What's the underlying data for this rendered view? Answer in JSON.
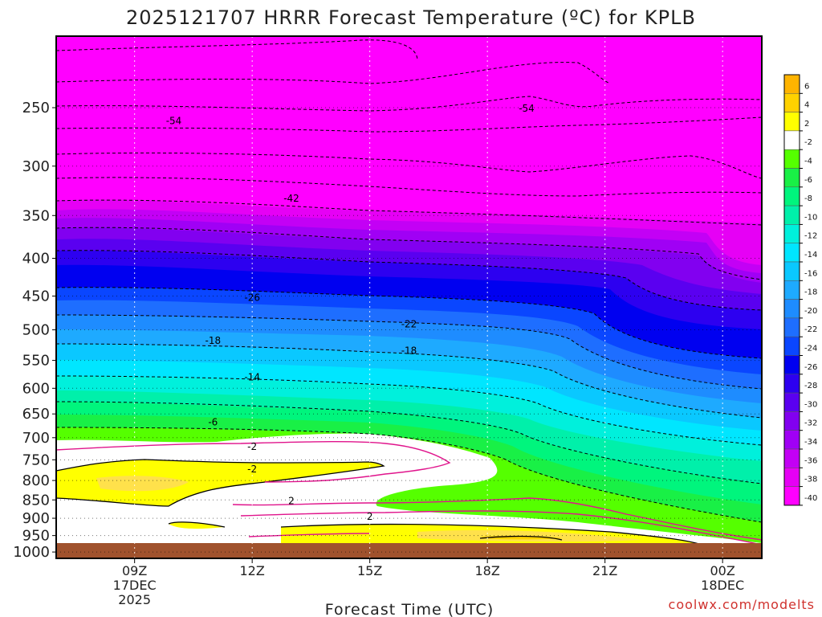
{
  "chart_data": {
    "type": "heatmap",
    "title": "2025121707 HRRR Forecast Temperature (ºC) for KPLB",
    "xlabel": "Forecast Time (UTC)",
    "ylabel": "",
    "credit": "coolwx.com/modelts",
    "x_ticks": [
      {
        "label": "09Z",
        "sub": [
          "17DEC",
          "2025"
        ],
        "hour": 9
      },
      {
        "label": "12Z",
        "sub": [],
        "hour": 12
      },
      {
        "label": "15Z",
        "sub": [],
        "hour": 15
      },
      {
        "label": "18Z",
        "sub": [],
        "hour": 18
      },
      {
        "label": "21Z",
        "sub": [],
        "hour": 21
      },
      {
        "label": "00Z",
        "sub": [
          "18DEC"
        ],
        "hour": 24
      }
    ],
    "x_range_hours": [
      7.0,
      25.0
    ],
    "y_axis": "pressure (log scale, inverted)",
    "y_range": [
      1020,
      200
    ],
    "y_ticks": [
      250,
      300,
      350,
      400,
      450,
      500,
      550,
      600,
      650,
      700,
      750,
      800,
      850,
      900,
      950,
      1000
    ],
    "grid": true,
    "colorbar": {
      "levels": [
        "6",
        "4",
        "2",
        "-2",
        "-4",
        "-6",
        "-8",
        "-10",
        "-12",
        "-14",
        "-16",
        "-18",
        "-20",
        "-22",
        "-24",
        "-26",
        "-28",
        "-30",
        "-32",
        "-34",
        "-36",
        "-38",
        "-40"
      ],
      "colors": [
        "#ffb400",
        "#ffd200",
        "#ffff00",
        "#ffffff",
        "#55ff00",
        "#19f046",
        "#00f57d",
        "#00f0aa",
        "#00f0dc",
        "#00e6ff",
        "#0ac8ff",
        "#1eaaff",
        "#1e8cff",
        "#1e6eff",
        "#0a46ff",
        "#0000f0",
        "#2d00f0",
        "#5a00f0",
        "#8200f0",
        "#a000f5",
        "#c300f5",
        "#e600f5",
        "#ff00ff"
      ]
    },
    "isotherm_labels": [
      {
        "text": "-54",
        "hour": 10.0,
        "p": 260
      },
      {
        "text": "-54",
        "hour": 19.0,
        "p": 250
      },
      {
        "text": "-42",
        "hour": 13.0,
        "p": 331
      },
      {
        "text": "-26",
        "hour": 12.0,
        "p": 451
      },
      {
        "text": "-22",
        "hour": 16.0,
        "p": 490
      },
      {
        "text": "-18",
        "hour": 11.0,
        "p": 516
      },
      {
        "text": "-18",
        "hour": 16.0,
        "p": 532
      },
      {
        "text": "-14",
        "hour": 12.0,
        "p": 578
      },
      {
        "text": "-6",
        "hour": 11.0,
        "p": 665
      },
      {
        "text": "-2",
        "hour": 12.0,
        "p": 718
      },
      {
        "text": "-2",
        "hour": 12.0,
        "p": 770
      },
      {
        "text": "2",
        "hour": 13.0,
        "p": 850
      },
      {
        "text": "2",
        "hour": 15.0,
        "p": 893
      }
    ]
  }
}
